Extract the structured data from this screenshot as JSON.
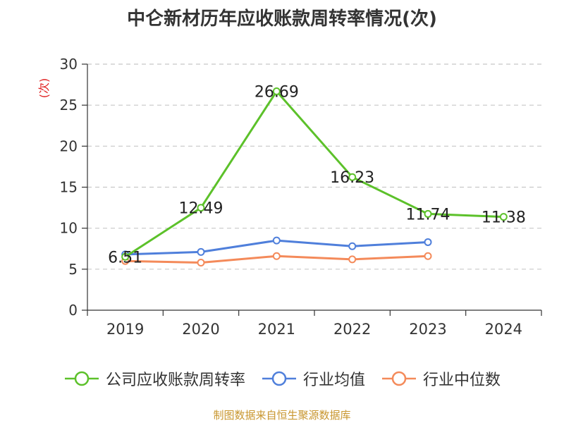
{
  "title": "中仑新材历年应收账款周转率情况(次)",
  "source": "制图数据来自恒生聚源数据库",
  "chart_data": {
    "type": "line",
    "categories": [
      "2019",
      "2020",
      "2021",
      "2022",
      "2023",
      "2024"
    ],
    "ylabel": "(次)",
    "ylim": [
      0,
      30
    ],
    "yticks": [
      0,
      5,
      10,
      15,
      20,
      25,
      30
    ],
    "grid": true,
    "legend_position": "bottom",
    "series": [
      {
        "name": "公司应收账款周转率",
        "color": "#5cc12a",
        "values": [
          6.51,
          12.49,
          26.69,
          16.23,
          11.74,
          11.38
        ],
        "show_labels": true
      },
      {
        "name": "行业均值",
        "color": "#4f7fdb",
        "values": [
          6.8,
          7.1,
          8.5,
          7.8,
          8.3,
          null
        ],
        "show_labels": false
      },
      {
        "name": "行业中位数",
        "color": "#f48a5a",
        "values": [
          6.0,
          5.8,
          6.6,
          6.2,
          6.6,
          null
        ],
        "show_labels": false
      }
    ],
    "data_labels": [
      "6.51",
      "12.49",
      "26.69",
      "16.23",
      "11.74",
      "11.38"
    ]
  }
}
